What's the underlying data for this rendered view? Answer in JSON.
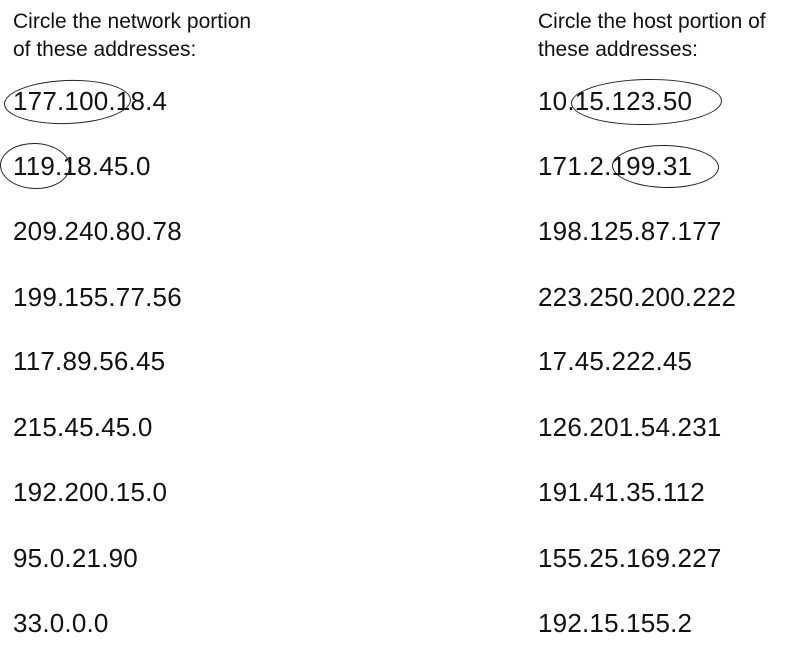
{
  "left_column": {
    "instruction_line1": "Circle the network portion",
    "instruction_line2": "of these addresses:",
    "addresses": [
      {
        "text": "177.100.18.4",
        "circled": "177.100."
      },
      {
        "text": "119.18.45.0",
        "circled": "119."
      },
      {
        "text": "209.240.80.78"
      },
      {
        "text": "199.155.77.56"
      },
      {
        "text": "117.89.56.45"
      },
      {
        "text": "215.45.45.0"
      },
      {
        "text": "192.200.15.0"
      },
      {
        "text": "95.0.21.90"
      },
      {
        "text": "33.0.0.0"
      }
    ]
  },
  "right_column": {
    "instruction_line1": "Circle the host portion of",
    "instruction_line2": "these addresses:",
    "addresses": [
      {
        "text": "10.15.123.50",
        "circled": "15.123.50"
      },
      {
        "text": "171.2.199.31",
        "circled": "199.31"
      },
      {
        "text": "198.125.87.177"
      },
      {
        "text": "223.250.200.222"
      },
      {
        "text": "17.45.222.45"
      },
      {
        "text": "126.201.54.231"
      },
      {
        "text": "191.41.35.112"
      },
      {
        "text": "155.25.169.227"
      },
      {
        "text": "192.15.155.2"
      }
    ]
  }
}
